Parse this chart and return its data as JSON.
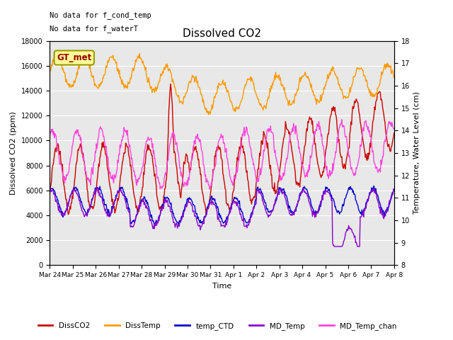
{
  "title": "Dissolved CO2",
  "xlabel": "Time",
  "ylabel_left": "Dissolved CO2 (ppm)",
  "ylabel_right": "Temperature, Water Level (cm)",
  "ylim_left": [
    0,
    18000
  ],
  "ylim_right": [
    8.0,
    18.0
  ],
  "yticks_left": [
    0,
    2000,
    4000,
    6000,
    8000,
    10000,
    12000,
    14000,
    16000,
    18000
  ],
  "yticks_right": [
    8.0,
    9.0,
    10.0,
    11.0,
    12.0,
    13.0,
    14.0,
    15.0,
    16.0,
    17.0,
    18.0
  ],
  "xtick_labels": [
    "Mar 24",
    "Mar 25",
    "Mar 26",
    "Mar 27",
    "Mar 28",
    "Mar 29",
    "Mar 30",
    "Mar 31",
    "Apr 1",
    "Apr 2",
    "Apr 3",
    "Apr 4",
    "Apr 5",
    "Apr 6",
    "Apr 7",
    "Apr 8"
  ],
  "annotation_text1": "No data for f_cond_temp",
  "annotation_text2": "No data for f_waterT",
  "gt_met_label": "GT_met",
  "colors": {
    "DissCO2": "#cc0000",
    "DissTemp": "#ff9900",
    "temp_CTD": "#0000cc",
    "MD_Temp": "#8800cc",
    "MD_Temp_chan": "#ff44dd"
  },
  "background_color": "#e8e8e8",
  "legend_entries": [
    "DissCO2",
    "DissTemp",
    "temp_CTD",
    "MD_Temp",
    "MD_Temp_chan"
  ]
}
